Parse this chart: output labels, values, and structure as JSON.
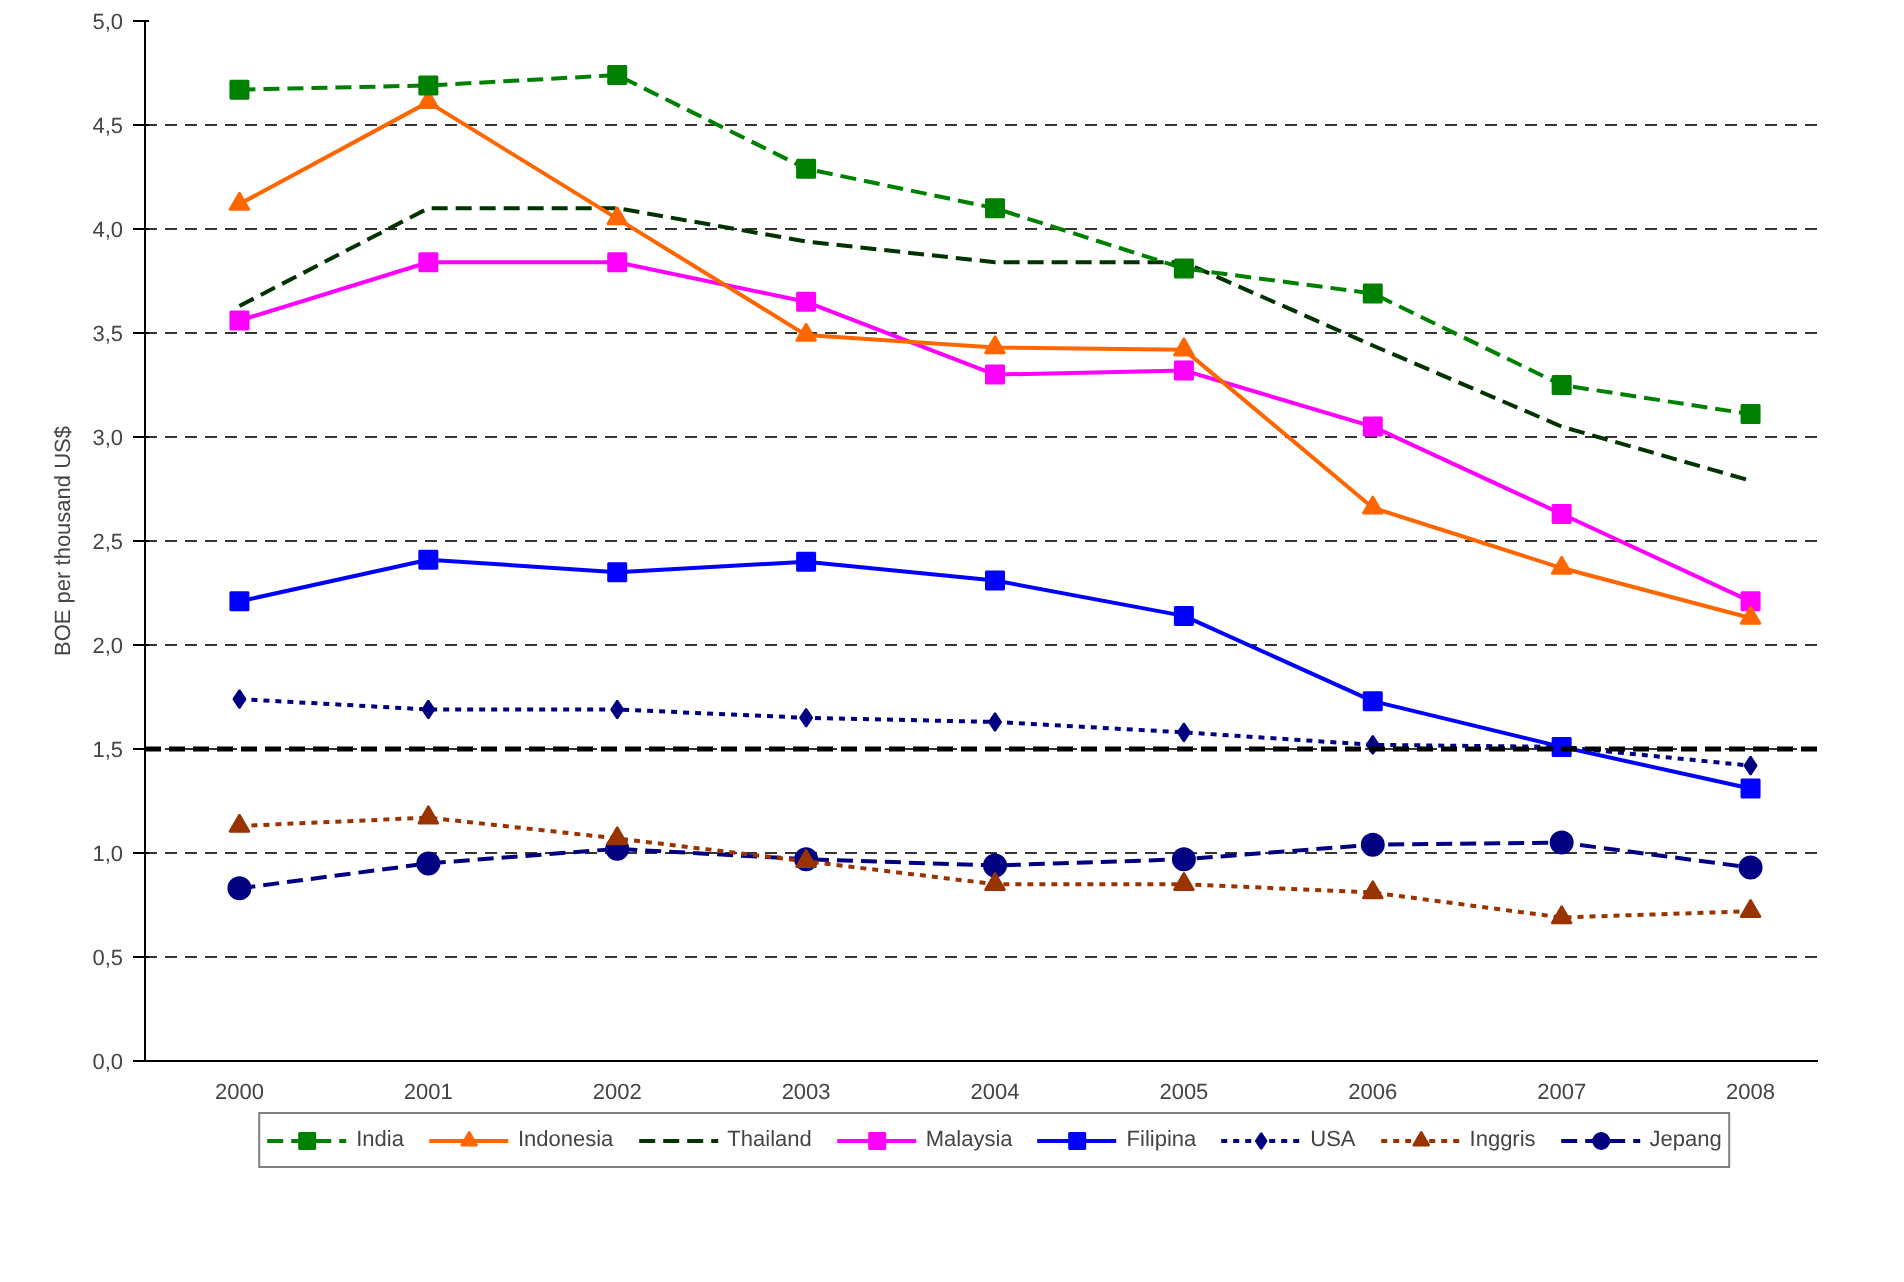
{
  "chart_data": {
    "type": "line",
    "ylabel": "BOE per thousand US$",
    "categories": [
      "2000",
      "2001",
      "2002",
      "2003",
      "2004",
      "2005",
      "2006",
      "2007",
      "2008"
    ],
    "ylim": [
      0,
      5
    ],
    "yticks": [
      {
        "value": 0,
        "label": "0,0"
      },
      {
        "value": 0.5,
        "label": "0,5"
      },
      {
        "value": 1,
        "label": "1,0"
      },
      {
        "value": 1.5,
        "label": "1,5"
      },
      {
        "value": 2,
        "label": "2,0"
      },
      {
        "value": 2.5,
        "label": "2,5"
      },
      {
        "value": 3,
        "label": "3,0"
      },
      {
        "value": 3.5,
        "label": "3,5"
      },
      {
        "value": 4,
        "label": "4,0"
      },
      {
        "value": 4.5,
        "label": "4,5"
      },
      {
        "value": 5,
        "label": "5,0"
      }
    ],
    "grid": "y",
    "legend": "bottom",
    "ref_lines": [
      {
        "axis": "y",
        "value": 1.5,
        "color": "#000000",
        "line_style": "dashed"
      }
    ],
    "series": [
      {
        "name": "India",
        "color": "#008000",
        "marker": "square",
        "line_style": "dashed",
        "values": [
          4.67,
          4.69,
          4.74,
          4.29,
          4.1,
          3.81,
          3.69,
          3.25,
          3.11
        ]
      },
      {
        "name": "Indonesia",
        "color": "#ff6600",
        "marker": "triangle",
        "line_style": "solid",
        "values": [
          4.12,
          4.61,
          4.05,
          3.49,
          3.43,
          3.42,
          2.66,
          2.37,
          2.13
        ]
      },
      {
        "name": "Thailand",
        "color": "#003300",
        "marker": "none",
        "line_style": "dashed",
        "values": [
          3.63,
          4.1,
          4.1,
          3.94,
          3.84,
          3.84,
          3.44,
          3.05,
          2.79
        ]
      },
      {
        "name": "Malaysia",
        "color": "#ff00ff",
        "marker": "square",
        "line_style": "solid",
        "values": [
          3.56,
          3.84,
          3.84,
          3.65,
          3.3,
          3.32,
          3.05,
          2.63,
          2.21
        ]
      },
      {
        "name": "Filipina",
        "color": "#0000ff",
        "marker": "square",
        "line_style": "solid",
        "values": [
          2.21,
          2.41,
          2.35,
          2.4,
          2.31,
          2.14,
          1.73,
          1.51,
          1.31
        ]
      },
      {
        "name": "USA",
        "color": "#000080",
        "marker": "diamond",
        "line_style": "dotted",
        "values": [
          1.74,
          1.69,
          1.69,
          1.65,
          1.63,
          1.58,
          1.52,
          1.51,
          1.42
        ]
      },
      {
        "name": "Inggris",
        "color": "#993300",
        "marker": "triangle",
        "line_style": "dotted",
        "values": [
          1.13,
          1.17,
          1.07,
          0.96,
          0.85,
          0.85,
          0.81,
          0.69,
          0.72
        ]
      },
      {
        "name": "Jepang",
        "color": "#000080",
        "marker": "circle",
        "line_style": "dashed",
        "values": [
          0.83,
          0.95,
          1.02,
          0.97,
          0.94,
          0.97,
          1.04,
          1.05,
          0.93
        ]
      }
    ]
  }
}
